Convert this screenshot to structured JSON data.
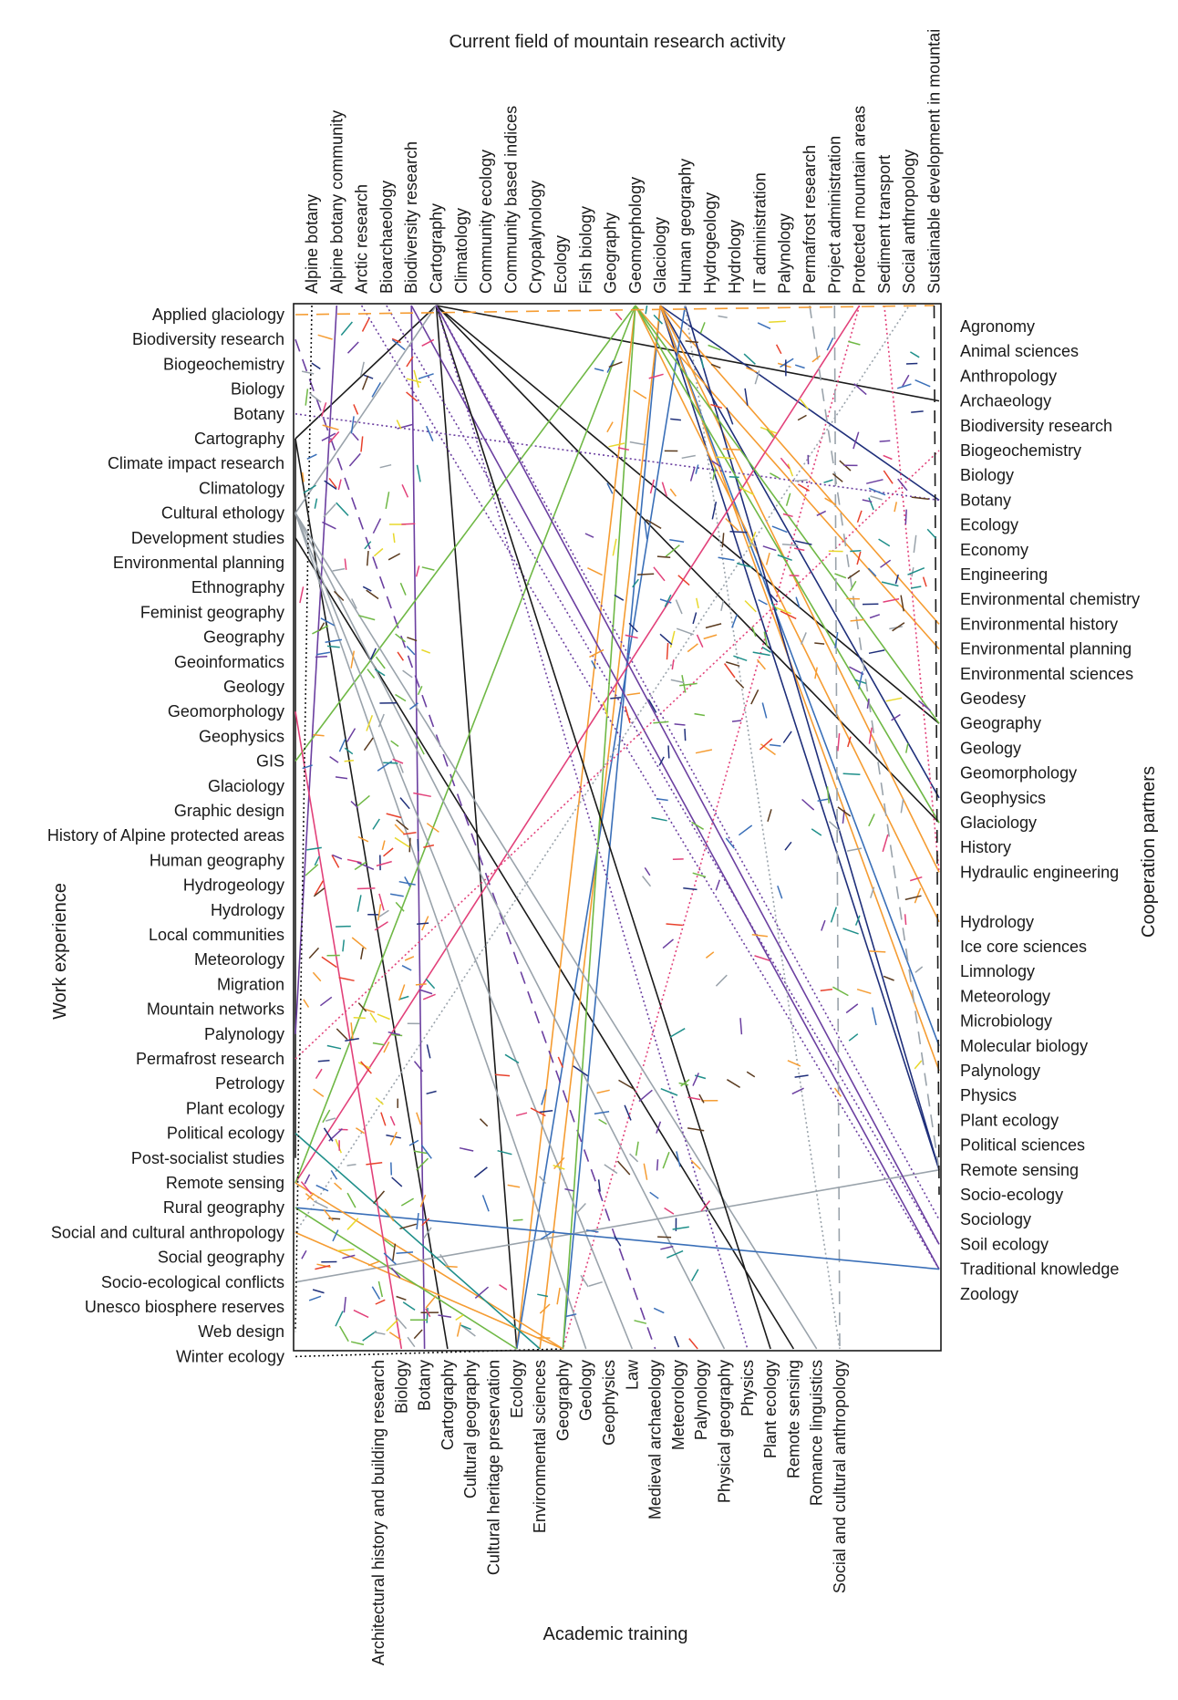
{
  "chart_data": {
    "type": "parallel-sets",
    "title_top": "Current field of mountain research activity",
    "title_bottom": "Academic training",
    "title_left": "Work experience",
    "title_right": "Cooperation partners",
    "top_axis": [
      "Alpine botany",
      "Alpine botany community",
      "Arctic research",
      "Bioarchaeology",
      "Biodiversity research",
      "Cartography",
      "Climatology",
      "Community ecology",
      "Community based indices",
      "Cryopalynology",
      "Ecology",
      "Fish biology",
      "Geography",
      "Geomorphology",
      "Glaciology",
      "Human geography",
      "Hydrogeology",
      "Hydrology",
      "IT administration",
      "Palynology",
      "Permafrost research",
      "Project administration",
      "Protected mountain areas",
      "Sediment transport",
      "Social anthropology",
      "Sustainable development in mountai"
    ],
    "bottom_axis": [
      "Architectural history and building research",
      "Biology",
      "Botany",
      "Cartography",
      "Cultural geography",
      "Cultural heritage preservation",
      "Ecology",
      "Environmental sciences",
      "Geography",
      "Geology",
      "Geophysics",
      "Law",
      "Medieval archaeology",
      "Meteorology",
      "Palynology",
      "Physical geography",
      "Physics",
      "Plant ecology",
      "Remote sensing",
      "Romance linguistics",
      "Social and cultural anthropology"
    ],
    "left_axis": [
      "Applied glaciology",
      "Biodiversity research",
      "Biogeochemistry",
      "Biology",
      "Botany",
      "Cartography",
      "Climate impact research",
      "Climatology",
      "Cultural ethology",
      "Development studies",
      "Environmental planning",
      "Ethnography",
      "Feminist geography",
      "Geography",
      "Geoinformatics",
      "Geology",
      "Geomorphology",
      "Geophysics",
      "GIS",
      "Glaciology",
      "Graphic design",
      "History of Alpine protected areas",
      "Human geography",
      "Hydrogeology",
      "Hydrology",
      "Local communities",
      "Meteorology",
      "Migration",
      "Mountain networks",
      "Palynology",
      "Permafrost research",
      "Petrology",
      "Plant ecology",
      "Political ecology",
      "Post-socialist studies",
      "Remote sensing",
      "Rural geography",
      "Social and cultural anthropology",
      "Social geography",
      "Socio-ecological conflicts",
      "Unesco biosphere reserves",
      "Web design",
      "Winter ecology"
    ],
    "right_axis": [
      "Agronomy",
      "Animal sciences",
      "Anthropology",
      "Archaeology",
      "Biodiversity research",
      "Biogeochemistry",
      "Biology",
      "Botany",
      "Ecology",
      "Economy",
      "Engineering",
      "Environmental chemistry",
      "Environmental history",
      "Environmental planning",
      "Environmental sciences",
      "Geodesy",
      "Geography",
      "Geology",
      "Geomorphology",
      "Geophysics",
      "Glaciology",
      "History",
      "Hydraulic engineering",
      "",
      "Hydrology",
      "Ice core sciences",
      "Limnology",
      "Meteorology",
      "Microbiology",
      "Molecular biology",
      "Palynology",
      "Physics",
      "Plant ecology",
      "Political sciences",
      "Remote sensing",
      "Socio-ecology",
      "Sociology",
      "Soil ecology",
      "Traditional knowledge",
      "Zoology"
    ],
    "colors": {
      "frame": "#1a1a1a",
      "palette": [
        "#f59c32",
        "#f59c32",
        "#1f8f8a",
        "#1f8f8a",
        "#5a3a1e",
        "#1f2f7a",
        "#9aa3ab",
        "#1a1a1a",
        "#6b3fa0",
        "#6fb845",
        "#e8d82c",
        "#3a6fb8",
        "#e2417a",
        "#e8412c",
        "#9aa3ab"
      ]
    },
    "links": [
      {
        "from": [
          "top",
          5
        ],
        "to": [
          "left",
          5
        ],
        "style": "solid",
        "color": 7
      },
      {
        "from": [
          "top",
          5
        ],
        "to": [
          "right",
          20
        ],
        "style": "solid",
        "color": 7
      },
      {
        "from": [
          "top",
          5
        ],
        "to": [
          "right",
          16
        ],
        "style": "solid",
        "color": 7
      },
      {
        "from": [
          "top",
          5
        ],
        "to": [
          "right",
          3
        ],
        "style": "solid",
        "color": 7
      },
      {
        "from": [
          "top",
          5
        ],
        "to": [
          "bottom",
          6
        ],
        "style": "solid",
        "color": 7
      },
      {
        "from": [
          "left",
          5
        ],
        "to": [
          "bottom",
          3
        ],
        "style": "solid",
        "color": 7
      },
      {
        "from": [
          "left",
          5
        ],
        "to": [
          "left",
          34
        ],
        "style": "solid",
        "color": 7
      },
      {
        "from": [
          "left",
          9
        ],
        "to": [
          "bottom",
          18
        ],
        "style": "solid",
        "color": 7
      },
      {
        "from": [
          "top",
          14
        ],
        "to": [
          "right",
          19
        ],
        "style": "solid",
        "color": 5
      },
      {
        "from": [
          "top",
          14
        ],
        "to": [
          "right",
          34
        ],
        "style": "solid",
        "color": 5
      },
      {
        "from": [
          "top",
          14
        ],
        "to": [
          "right",
          29
        ],
        "style": "solid",
        "color": 11
      },
      {
        "from": [
          "top",
          14
        ],
        "to": [
          "bottom",
          8
        ],
        "style": "solid",
        "color": 11
      },
      {
        "from": [
          "top",
          14
        ],
        "to": [
          "right",
          7
        ],
        "style": "solid",
        "color": 5
      },
      {
        "from": [
          "top",
          14
        ],
        "to": [
          "bottom",
          7
        ],
        "style": "solid",
        "color": 0
      },
      {
        "from": [
          "top",
          14
        ],
        "to": [
          "right",
          22
        ],
        "style": "solid",
        "color": 0
      },
      {
        "from": [
          "top",
          14
        ],
        "to": [
          "right",
          12
        ],
        "style": "solid",
        "color": 0
      },
      {
        "from": [
          "top",
          14
        ],
        "to": [
          "right",
          30
        ],
        "style": "solid",
        "color": 0
      },
      {
        "from": [
          "top",
          13
        ],
        "to": [
          "bottom",
          6
        ],
        "style": "solid",
        "color": 0
      },
      {
        "from": [
          "top",
          13
        ],
        "to": [
          "right",
          24
        ],
        "style": "solid",
        "color": 0
      },
      {
        "from": [
          "top",
          13
        ],
        "to": [
          "right",
          13
        ],
        "style": "solid",
        "color": 0
      },
      {
        "from": [
          "top",
          15
        ],
        "to": [
          "right",
          34
        ],
        "style": "solid",
        "color": 5
      },
      {
        "from": [
          "top",
          15
        ],
        "to": [
          "bottom",
          6
        ],
        "style": "solid",
        "color": 11
      },
      {
        "from": [
          "left",
          4
        ],
        "to": [
          "right",
          7
        ],
        "style": "dotted",
        "color": 8
      },
      {
        "from": [
          "top",
          4
        ],
        "to": [
          "bottom",
          2
        ],
        "style": "solid",
        "color": 8
      },
      {
        "from": [
          "top",
          4
        ],
        "to": [
          "right",
          38
        ],
        "style": "solid",
        "color": 8
      },
      {
        "from": [
          "top",
          1
        ],
        "to": [
          "left",
          29
        ],
        "style": "solid",
        "color": 8
      },
      {
        "from": [
          "top",
          3
        ],
        "to": [
          "right",
          37
        ],
        "style": "dotted",
        "color": 8
      },
      {
        "from": [
          "top",
          2
        ],
        "to": [
          "right",
          38
        ],
        "style": "dotted",
        "color": 8
      },
      {
        "from": [
          "left",
          1
        ],
        "to": [
          "bottom",
          12
        ],
        "style": "dashed",
        "color": 8
      },
      {
        "from": [
          "top",
          22
        ],
        "to": [
          "left",
          35
        ],
        "style": "solid",
        "color": 12
      },
      {
        "from": [
          "left",
          30
        ],
        "to": [
          "right",
          5
        ],
        "style": "dotted",
        "color": 12
      },
      {
        "from": [
          "top",
          22
        ],
        "to": [
          "bottom",
          8
        ],
        "style": "dotted",
        "color": 12
      },
      {
        "from": [
          "top",
          23
        ],
        "to": [
          "right",
          22
        ],
        "style": "dotted",
        "color": 12
      },
      {
        "from": [
          "left",
          18
        ],
        "to": [
          "top",
          13
        ],
        "style": "solid",
        "color": 9
      },
      {
        "from": [
          "left",
          35
        ],
        "to": [
          "top",
          13
        ],
        "style": "solid",
        "color": 9
      },
      {
        "from": [
          "top",
          13
        ],
        "to": [
          "right",
          16
        ],
        "style": "solid",
        "color": 9
      },
      {
        "from": [
          "top",
          13
        ],
        "to": [
          "right",
          20
        ],
        "style": "solid",
        "color": 9
      },
      {
        "from": [
          "top",
          13
        ],
        "to": [
          "bottom",
          8
        ],
        "style": "solid",
        "color": 9
      },
      {
        "from": [
          "left",
          8
        ],
        "to": [
          "bottom",
          19
        ],
        "style": "solid",
        "color": 6
      },
      {
        "from": [
          "left",
          8
        ],
        "to": [
          "bottom",
          15
        ],
        "style": "solid",
        "color": 6
      },
      {
        "from": [
          "left",
          8
        ],
        "to": [
          "bottom",
          11
        ],
        "style": "solid",
        "color": 6
      },
      {
        "from": [
          "left",
          8
        ],
        "to": [
          "bottom",
          9
        ],
        "style": "solid",
        "color": 6
      },
      {
        "from": [
          "left",
          8
        ],
        "to": [
          "top",
          5
        ],
        "style": "solid",
        "color": 6
      },
      {
        "from": [
          "left",
          39
        ],
        "to": [
          "right",
          34
        ],
        "style": "solid",
        "color": 6
      },
      {
        "from": [
          "top",
          15
        ],
        "to": [
          "bottom",
          20
        ],
        "style": "dotted",
        "color": 14
      },
      {
        "from": [
          "left",
          37
        ],
        "to": [
          "top",
          24
        ],
        "style": "dotted",
        "color": 14
      },
      {
        "from": [
          "top",
          21
        ],
        "to": [
          "bottom",
          20
        ],
        "style": "dashed",
        "color": 14
      },
      {
        "from": [
          "top",
          20
        ],
        "to": [
          "right",
          34
        ],
        "style": "dashed",
        "color": 14
      },
      {
        "from": [
          "left",
          36
        ],
        "to": [
          "right",
          38
        ],
        "style": "solid",
        "color": 11
      },
      {
        "from": [
          "top",
          5
        ],
        "to": [
          "bottom",
          17
        ],
        "style": "solid",
        "color": 7
      },
      {
        "from": [
          "top",
          5
        ],
        "to": [
          "bottom",
          16
        ],
        "style": "dotted",
        "color": 8
      },
      {
        "from": [
          "top",
          5
        ],
        "to": [
          "right",
          37
        ],
        "style": "solid",
        "color": 8
      },
      {
        "from": [
          "top",
          5
        ],
        "to": [
          "right",
          36
        ],
        "style": "dotted",
        "color": 8
      },
      {
        "from": [
          "left",
          0
        ],
        "to": [
          "top",
          25
        ],
        "style": "dashed",
        "color": 0
      },
      {
        "from": [
          "left",
          42
        ],
        "to": [
          "bottom",
          8
        ],
        "style": "dotted",
        "color": 7
      },
      {
        "from": [
          "left",
          37
        ],
        "to": [
          "bottom",
          8
        ],
        "style": "solid",
        "color": 0
      },
      {
        "from": [
          "left",
          35
        ],
        "to": [
          "bottom",
          8
        ],
        "style": "solid",
        "color": 0
      },
      {
        "from": [
          "left",
          33
        ],
        "to": [
          "bottom",
          7
        ],
        "style": "solid",
        "color": 2
      },
      {
        "from": [
          "left",
          36
        ],
        "to": [
          "bottom",
          6
        ],
        "style": "solid",
        "color": 9
      },
      {
        "from": [
          "left",
          16
        ],
        "to": [
          "bottom",
          1
        ],
        "style": "solid",
        "color": 12
      },
      {
        "from": [
          "top",
          0
        ],
        "to": [
          "left",
          41
        ],
        "style": "dotted",
        "color": 7
      },
      {
        "from": [
          "top",
          25
        ],
        "to": [
          "right",
          35
        ],
        "style": "dashed",
        "color": 7
      }
    ]
  }
}
